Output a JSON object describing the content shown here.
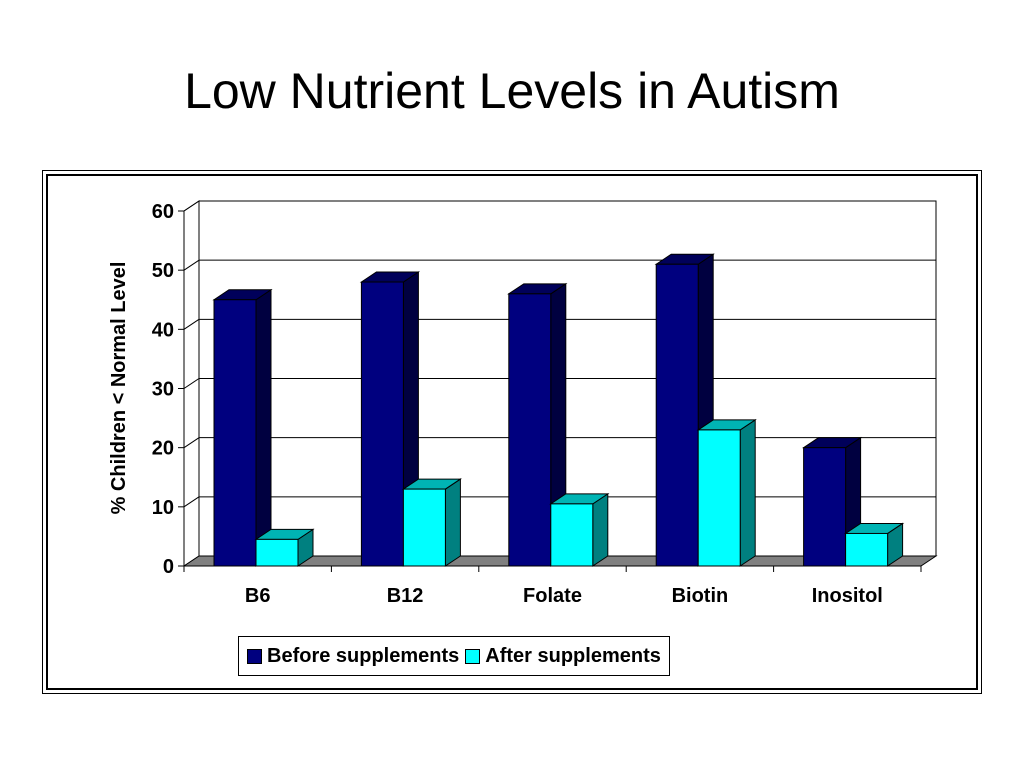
{
  "slide": {
    "title": "Low Nutrient Levels in Autism"
  },
  "colors": {
    "before_front": "#00007f",
    "before_side": "#000040",
    "before_top": "#00005a",
    "after_front": "#00ffff",
    "after_side": "#008080",
    "after_top": "#00b4b4",
    "floor": "#808080"
  },
  "chart_data": {
    "type": "bar",
    "title": "",
    "xlabel": "",
    "ylabel": "% Children < Normal Level",
    "ylim": [
      0,
      60
    ],
    "yticks": [
      0,
      10,
      20,
      30,
      40,
      50,
      60
    ],
    "grid": true,
    "legend_position": "bottom",
    "categories": [
      "B6",
      "B12",
      "Folate",
      "Biotin",
      "Inositol"
    ],
    "series": [
      {
        "name": "Before supplements",
        "values": [
          45,
          48,
          46,
          51,
          20
        ]
      },
      {
        "name": "After supplements",
        "values": [
          4.5,
          13,
          10.5,
          23,
          5.5
        ]
      }
    ]
  }
}
